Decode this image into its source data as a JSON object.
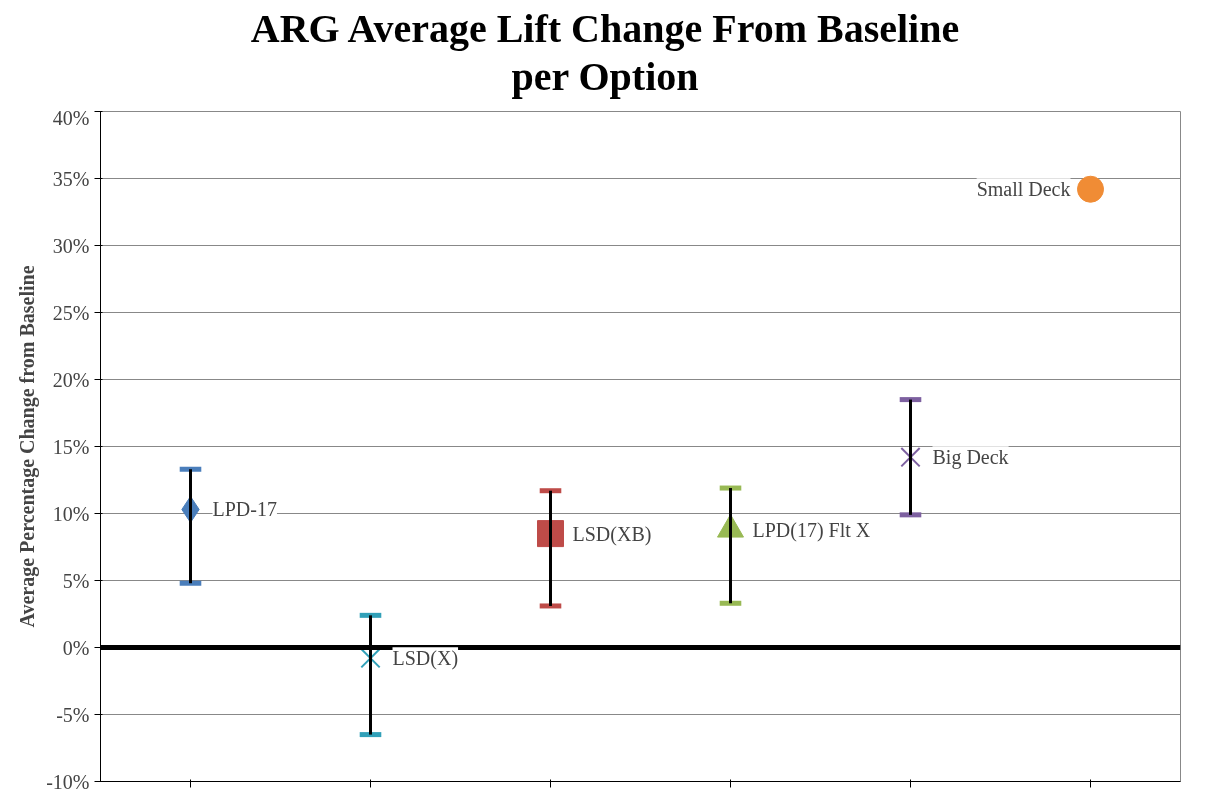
{
  "chart_data": {
    "type": "scatter",
    "title": "ARG Average Lift Change From Baseline\nper Option",
    "ylabel": "Average Percentage Change from Baseline",
    "categories": [
      null,
      null,
      null,
      null,
      null,
      null
    ],
    "ylim": [
      -10,
      40
    ],
    "yticks": [
      {
        "value": -10,
        "label": "-10%"
      },
      {
        "value": -5,
        "label": "-5%"
      },
      {
        "value": 0,
        "label": "0%"
      },
      {
        "value": 5,
        "label": "5%"
      },
      {
        "value": 10,
        "label": "10%"
      },
      {
        "value": 15,
        "label": "15%"
      },
      {
        "value": 20,
        "label": "20%"
      },
      {
        "value": 25,
        "label": "25%"
      },
      {
        "value": 30,
        "label": "30%"
      },
      {
        "value": 35,
        "label": "35%"
      },
      {
        "value": 40,
        "label": "40%"
      }
    ],
    "grid": "y",
    "tick_labels": "y",
    "ref_lines": [
      {
        "axis": "y",
        "value": 0,
        "color": "#000000"
      }
    ],
    "series": [
      {
        "name": "LPD-17",
        "color": "#4a7ebb",
        "marker": "diamond",
        "values": [
          10.3,
          null,
          null,
          null,
          null,
          null
        ],
        "errors": [
          [
            4.8,
            13.3
          ],
          null,
          null,
          null,
          null,
          null
        ]
      },
      {
        "name": "LSD(X)",
        "color": "#31a0b8",
        "marker": "cross",
        "values": [
          null,
          -0.8,
          null,
          null,
          null,
          null
        ],
        "errors": [
          null,
          [
            -6.5,
            2.4
          ],
          null,
          null,
          null,
          null
        ]
      },
      {
        "name": "LSD(XB)",
        "color": "#be4b48",
        "marker": "square",
        "values": [
          null,
          null,
          8.5,
          null,
          null,
          null
        ],
        "errors": [
          null,
          null,
          [
            3.1,
            11.7
          ],
          null,
          null,
          null
        ]
      },
      {
        "name": "LPD(17)  Flt X",
        "color": "#98b954",
        "marker": "triangle",
        "values": [
          null,
          null,
          null,
          8.8,
          null,
          null
        ],
        "errors": [
          null,
          null,
          null,
          [
            3.3,
            11.9
          ],
          null,
          null
        ]
      },
      {
        "name": "Big Deck",
        "color": "#7d60a0",
        "marker": "cross",
        "values": [
          null,
          null,
          null,
          null,
          14.2,
          null
        ],
        "errors": [
          null,
          null,
          null,
          null,
          [
            9.9,
            18.5
          ],
          null
        ]
      },
      {
        "name": "Small Deck",
        "color": "#f08c35",
        "marker": "circle",
        "values": [
          null,
          null,
          null,
          null,
          null,
          34.2
        ]
      }
    ]
  }
}
